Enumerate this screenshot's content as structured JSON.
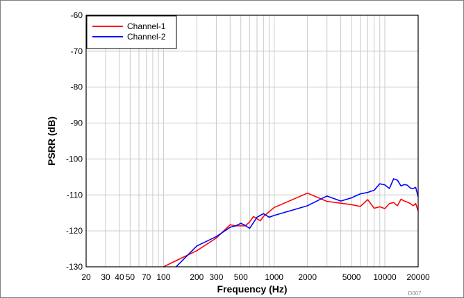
{
  "chart_data": {
    "type": "line",
    "xlabel": "Frequency (Hz)",
    "ylabel": "PSRR (dB)",
    "x_scale": "log",
    "xlim": [
      20,
      20000
    ],
    "ylim": [
      -130,
      -60
    ],
    "x_ticks": [
      20,
      30,
      40,
      50,
      70,
      100,
      200,
      300,
      500,
      1000,
      2000,
      5000,
      10000,
      20000
    ],
    "x_tick_labels": [
      "20",
      "30",
      "40",
      "50",
      "70",
      "100",
      "200",
      "300",
      "500",
      "1000",
      "2000",
      "5000",
      "10000",
      "20000"
    ],
    "y_ticks": [
      -130,
      -120,
      -110,
      -100,
      -90,
      -80,
      -70,
      -60
    ],
    "y_tick_labels": [
      "-130",
      "-120",
      "-110",
      "-100",
      "-90",
      "-80",
      "-70",
      "-60"
    ],
    "grid": true,
    "legend_position": "top-left",
    "figure_code": "D007",
    "series": [
      {
        "name": "Channel-1",
        "color": "#ff0000",
        "points": [
          [
            100,
            -130
          ],
          [
            200,
            -125.5
          ],
          [
            300,
            -122
          ],
          [
            400,
            -118.3
          ],
          [
            450,
            -118.6
          ],
          [
            500,
            -118.6
          ],
          [
            550,
            -118.6
          ],
          [
            600,
            -117.5
          ],
          [
            650,
            -116
          ],
          [
            750,
            -117.2
          ],
          [
            800,
            -116
          ],
          [
            1000,
            -113.5
          ],
          [
            2000,
            -109.5
          ],
          [
            3000,
            -111.8
          ],
          [
            4000,
            -112.3
          ],
          [
            5000,
            -112.7
          ],
          [
            6000,
            -113.2
          ],
          [
            7000,
            -111.3
          ],
          [
            8000,
            -113.7
          ],
          [
            9000,
            -113.3
          ],
          [
            10000,
            -113.8
          ],
          [
            11000,
            -112.4
          ],
          [
            12000,
            -112.1
          ],
          [
            13000,
            -113
          ],
          [
            14000,
            -111.2
          ],
          [
            15000,
            -111.7
          ],
          [
            16000,
            -112
          ],
          [
            17000,
            -112.4
          ],
          [
            18000,
            -113
          ],
          [
            19000,
            -112.4
          ],
          [
            20000,
            -114.5
          ]
        ]
      },
      {
        "name": "Channel-2",
        "color": "#0000ff",
        "points": [
          [
            130,
            -130
          ],
          [
            200,
            -124.2
          ],
          [
            300,
            -121.6
          ],
          [
            400,
            -119
          ],
          [
            450,
            -118.6
          ],
          [
            500,
            -117.9
          ],
          [
            550,
            -118.5
          ],
          [
            600,
            -119.3
          ],
          [
            700,
            -116.2
          ],
          [
            800,
            -115.2
          ],
          [
            900,
            -116.2
          ],
          [
            1000,
            -115.7
          ],
          [
            2000,
            -113
          ],
          [
            3000,
            -110.3
          ],
          [
            4000,
            -111.7
          ],
          [
            5000,
            -110.8
          ],
          [
            6000,
            -109.7
          ],
          [
            7000,
            -109.3
          ],
          [
            8000,
            -108.7
          ],
          [
            9000,
            -106.9
          ],
          [
            10000,
            -107.2
          ],
          [
            11000,
            -108.2
          ],
          [
            12000,
            -105.5
          ],
          [
            13000,
            -105.9
          ],
          [
            14000,
            -107.5
          ],
          [
            15000,
            -107.1
          ],
          [
            16000,
            -107.3
          ],
          [
            17000,
            -108.1
          ],
          [
            18000,
            -108.2
          ],
          [
            19000,
            -107.9
          ],
          [
            20000,
            -110.5
          ]
        ]
      }
    ]
  }
}
